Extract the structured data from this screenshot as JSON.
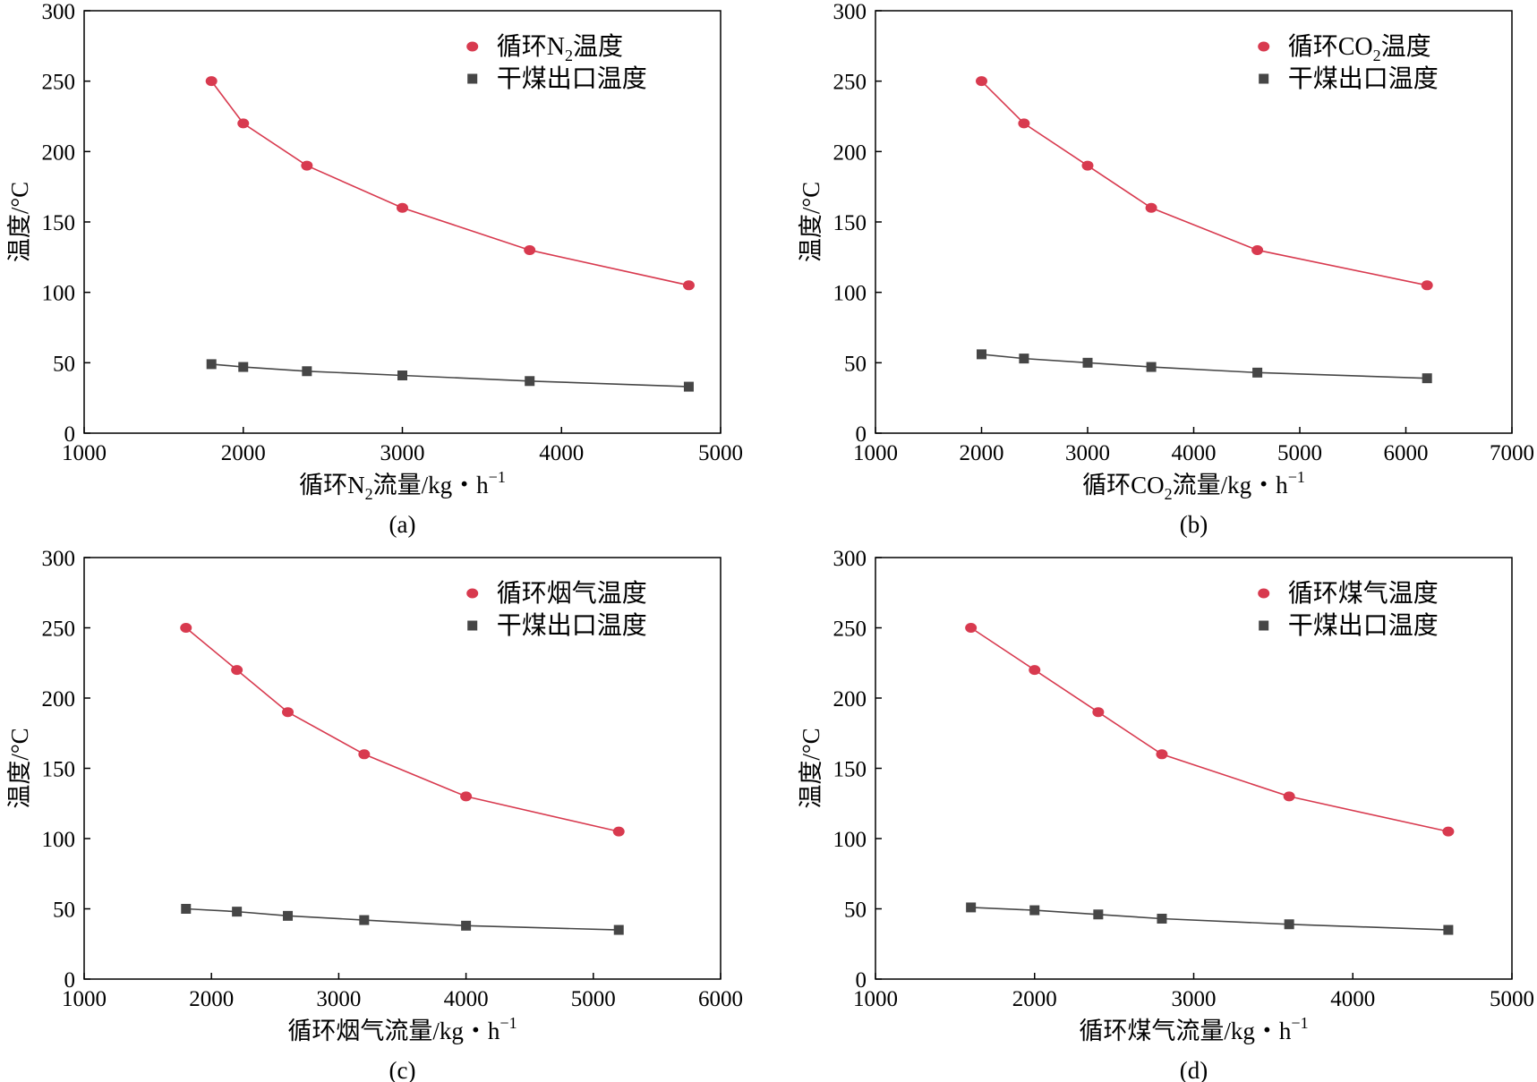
{
  "colors": {
    "series_red": "#d83a4f",
    "series_gray": "#464646",
    "axis": "#000000"
  },
  "ylabel": "温度/°C",
  "chart_data": [
    {
      "panel": "(a)",
      "type": "line",
      "xlabel_parts": [
        "循环N",
        "2",
        "流量/kg・h",
        "−1"
      ],
      "ylabel": "温度/°C",
      "xlim": [
        1000,
        5000
      ],
      "xticks": [
        1000,
        2000,
        3000,
        4000,
        5000
      ],
      "ylim": [
        0,
        300
      ],
      "yticks": [
        0,
        50,
        100,
        150,
        200,
        250,
        300
      ],
      "legend_position": "top-right",
      "series": [
        {
          "name": "循环N2温度",
          "label_parts": [
            "循环N",
            "2",
            "温度"
          ],
          "marker": "circle",
          "color": "#d83a4f",
          "x": [
            1800,
            2000,
            2400,
            3000,
            3800,
            4800
          ],
          "y": [
            250,
            220,
            190,
            160,
            130,
            105
          ]
        },
        {
          "name": "干煤出口温度",
          "label_parts": [
            "干煤出口温度"
          ],
          "marker": "square",
          "color": "#464646",
          "x": [
            1800,
            2000,
            2400,
            3000,
            3800,
            4800
          ],
          "y": [
            49,
            47,
            44,
            41,
            37,
            33
          ]
        }
      ]
    },
    {
      "panel": "(b)",
      "type": "line",
      "xlabel_parts": [
        "循环CO",
        "2",
        "流量/kg・h",
        "−1"
      ],
      "ylabel": "温度/°C",
      "xlim": [
        1000,
        7000
      ],
      "xticks": [
        1000,
        2000,
        3000,
        4000,
        5000,
        6000,
        7000
      ],
      "ylim": [
        0,
        300
      ],
      "yticks": [
        0,
        50,
        100,
        150,
        200,
        250,
        300
      ],
      "legend_position": "top-right",
      "series": [
        {
          "name": "循环CO2温度",
          "label_parts": [
            "循环CO",
            "2",
            "温度"
          ],
          "marker": "circle",
          "color": "#d83a4f",
          "x": [
            2000,
            2400,
            3000,
            3600,
            4600,
            6200
          ],
          "y": [
            250,
            220,
            190,
            160,
            130,
            105
          ]
        },
        {
          "name": "干煤出口温度",
          "label_parts": [
            "干煤出口温度"
          ],
          "marker": "square",
          "color": "#464646",
          "x": [
            2000,
            2400,
            3000,
            3600,
            4600,
            6200
          ],
          "y": [
            56,
            53,
            50,
            47,
            43,
            39
          ]
        }
      ]
    },
    {
      "panel": "(c)",
      "type": "line",
      "xlabel_parts": [
        "循环烟气流量/kg・h",
        "−1"
      ],
      "ylabel": "温度/°C",
      "xlim": [
        1000,
        6000
      ],
      "xticks": [
        1000,
        2000,
        3000,
        4000,
        5000,
        6000
      ],
      "ylim": [
        0,
        300
      ],
      "yticks": [
        0,
        50,
        100,
        150,
        200,
        250,
        300
      ],
      "legend_position": "top-right",
      "series": [
        {
          "name": "循环烟气温度",
          "label_parts": [
            "循环烟气温度"
          ],
          "marker": "circle",
          "color": "#d83a4f",
          "x": [
            1800,
            2200,
            2600,
            3200,
            4000,
            5200
          ],
          "y": [
            250,
            220,
            190,
            160,
            130,
            105
          ]
        },
        {
          "name": "干煤出口温度",
          "label_parts": [
            "干煤出口温度"
          ],
          "marker": "square",
          "color": "#464646",
          "x": [
            1800,
            2200,
            2600,
            3200,
            4000,
            5200
          ],
          "y": [
            50,
            48,
            45,
            42,
            38,
            35
          ]
        }
      ]
    },
    {
      "panel": "(d)",
      "type": "line",
      "xlabel_parts": [
        "循环煤气流量/kg・h",
        "−1"
      ],
      "ylabel": "温度/°C",
      "xlim": [
        1000,
        5000
      ],
      "xticks": [
        1000,
        2000,
        3000,
        4000,
        5000
      ],
      "ylim": [
        0,
        300
      ],
      "yticks": [
        0,
        50,
        100,
        150,
        200,
        250,
        300
      ],
      "legend_position": "top-right",
      "series": [
        {
          "name": "循环煤气温度",
          "label_parts": [
            "循环煤气温度"
          ],
          "marker": "circle",
          "color": "#d83a4f",
          "x": [
            1600,
            2000,
            2400,
            2800,
            3600,
            4600
          ],
          "y": [
            250,
            220,
            190,
            160,
            130,
            105
          ]
        },
        {
          "name": "干煤出口温度",
          "label_parts": [
            "干煤出口温度"
          ],
          "marker": "square",
          "color": "#464646",
          "x": [
            1600,
            2000,
            2400,
            2800,
            3600,
            4600
          ],
          "y": [
            51,
            49,
            46,
            43,
            39,
            35
          ]
        }
      ]
    }
  ]
}
